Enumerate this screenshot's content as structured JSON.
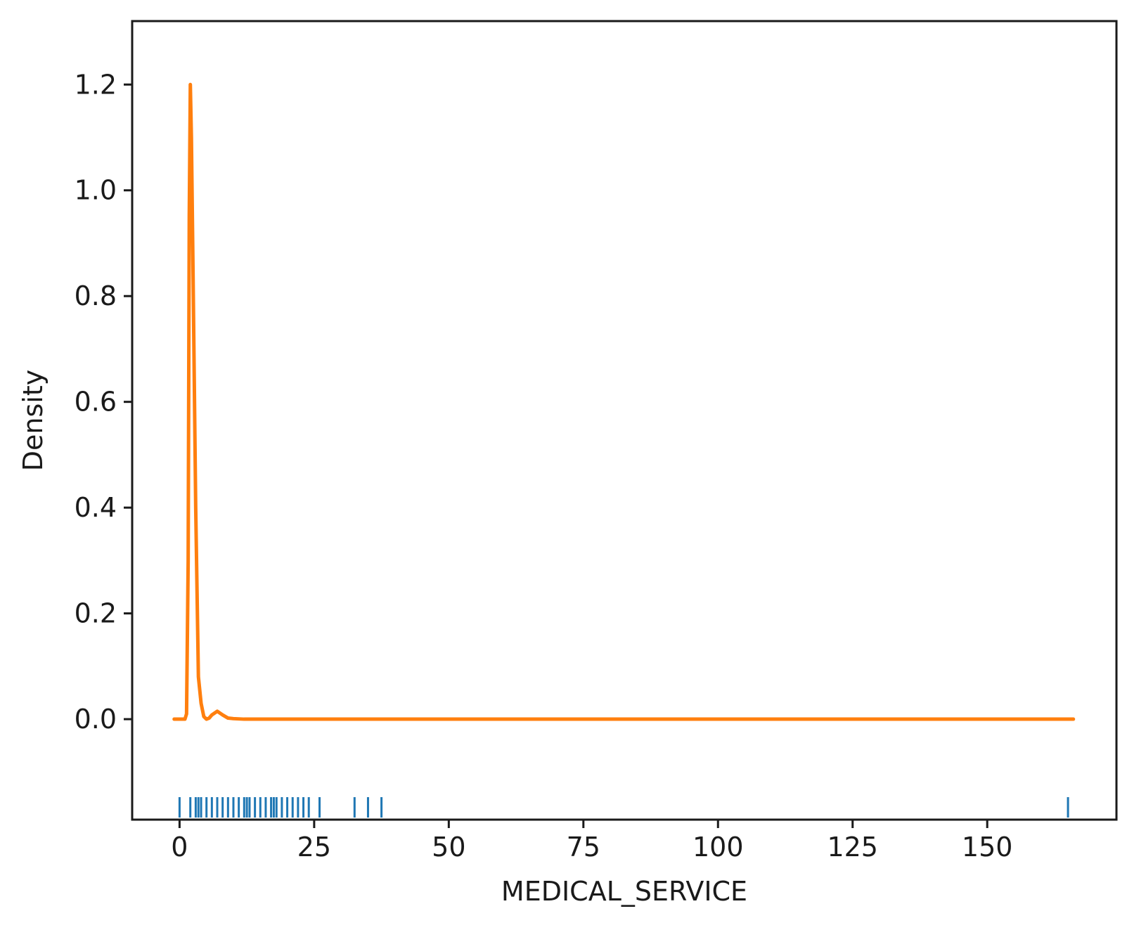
{
  "chart_data": {
    "type": "line",
    "title": "",
    "xlabel": "MEDICAL_SERVICE",
    "ylabel": "Density",
    "xlim": [
      -8.8,
      174
    ],
    "ylim": [
      -0.19,
      1.32
    ],
    "x_ticks": [
      0,
      25,
      50,
      75,
      100,
      125,
      150
    ],
    "y_ticks": [
      0.0,
      0.2,
      0.4,
      0.6,
      0.8,
      1.0,
      1.2
    ],
    "y_tick_labels": [
      "0.0",
      "0.2",
      "0.4",
      "0.6",
      "0.8",
      "1.0",
      "1.2"
    ],
    "grid": false,
    "legend": "none",
    "colors": {
      "density": "#ff7f0e",
      "rug": "#1f77b4"
    },
    "series": [
      {
        "kind": "density",
        "x": [
          -1,
          0,
          1,
          1.3,
          1.6,
          1.8,
          2,
          2.2,
          2.5,
          3,
          3.5,
          4,
          4.5,
          5,
          5.5,
          6,
          7,
          8,
          9,
          10,
          12,
          15,
          20,
          30,
          50,
          100,
          150,
          166
        ],
        "y": [
          0,
          0,
          0,
          0.01,
          0.3,
          0.95,
          1.2,
          1.1,
          0.85,
          0.4,
          0.08,
          0.03,
          0.005,
          0.0,
          0.002,
          0.008,
          0.015,
          0.008,
          0.002,
          0.001,
          0.0,
          0.0,
          0.0,
          0.0,
          0.0,
          0.0,
          0.0,
          0.0
        ]
      },
      {
        "kind": "rug",
        "x": [
          0,
          2,
          3,
          3.5,
          4,
          5,
          6,
          7,
          8,
          9,
          10,
          11,
          12,
          12.5,
          13,
          14,
          15,
          16,
          17,
          17.5,
          18,
          19,
          20,
          21,
          22,
          23,
          24,
          26,
          32.5,
          35,
          37.5,
          165
        ]
      }
    ]
  }
}
